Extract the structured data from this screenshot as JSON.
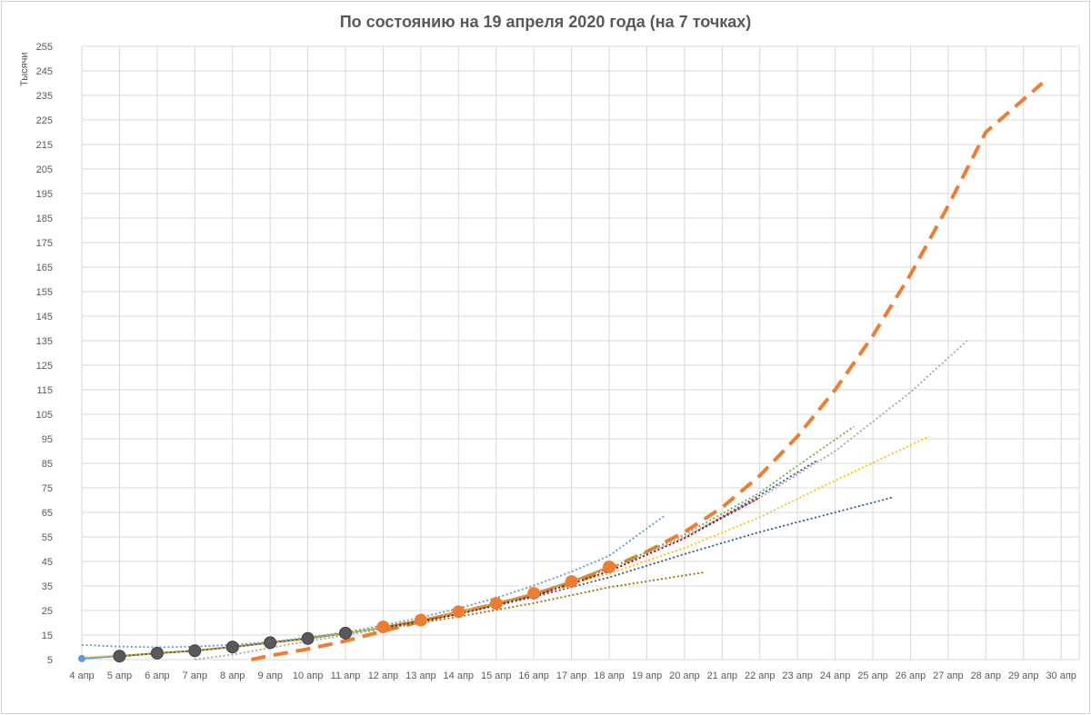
{
  "chart_data": {
    "type": "line",
    "title": "По состоянию на 19 апреля 2020 года (на 7 точках)",
    "ylabel": "Тысячи",
    "xlabel": "",
    "ylim": [
      5,
      255
    ],
    "y_ticks": [
      5,
      15,
      25,
      35,
      45,
      55,
      65,
      75,
      85,
      95,
      105,
      115,
      125,
      135,
      145,
      155,
      165,
      175,
      185,
      195,
      205,
      215,
      225,
      235,
      245,
      255
    ],
    "categories": [
      "4 апр",
      "5 апр",
      "6 апр",
      "7 апр",
      "8 апр",
      "9 апр",
      "10 апр",
      "11 апр",
      "12 апр",
      "13 апр",
      "14 апр",
      "15 апр",
      "16 апр",
      "17 апр",
      "18 апр",
      "19 апр",
      "20 апр",
      "21 апр",
      "22 апр",
      "23 апр",
      "24 апр",
      "25 апр",
      "26 апр",
      "27 апр",
      "28 апр",
      "29 апр",
      "30 апр"
    ],
    "grid": true,
    "legend": "none",
    "colors": {
      "gray_markers": "#595959",
      "orange": "#ED7D31",
      "blue_small": "#5B9BD5",
      "dark_blue": "#2E5597",
      "gray": "#A5A5A5",
      "yellow": "#FFC000",
      "dark_yellow": "#997300",
      "green": "#70AD47",
      "red": "#C00000",
      "grid": "#d9d9d9"
    },
    "series": [
      {
        "style": "marker",
        "color": "#5B9BD5",
        "x": [
          0,
          1
        ],
        "y": [
          5.4,
          6.4
        ]
      },
      {
        "style": "marker",
        "color": "#595959",
        "x": [
          1,
          2,
          3,
          4,
          5,
          6,
          7
        ],
        "y": [
          6.4,
          7.6,
          8.6,
          10.1,
          11.9,
          13.6,
          15.8
        ]
      },
      {
        "style": "marker",
        "color": "#ED7D31",
        "x": [
          8,
          9,
          10,
          11,
          12,
          13,
          14
        ],
        "y": [
          18.3,
          21.1,
          24.5,
          27.9,
          32.0,
          36.8,
          42.8
        ]
      },
      {
        "style": "dashed",
        "color": "#ED7D31",
        "x": [
          4.5,
          5,
          6,
          7,
          8,
          9,
          10,
          11,
          12,
          13,
          14,
          15,
          16,
          17,
          18,
          19,
          20,
          21,
          22,
          23,
          24,
          25.5
        ],
        "y": [
          5.0,
          6.6,
          9.3,
          12.6,
          16.6,
          20.6,
          24.3,
          27.7,
          31.4,
          36.0,
          42.0,
          49.0,
          57.0,
          67.0,
          80.0,
          96.0,
          115.0,
          137.0,
          162.0,
          190.0,
          220.0,
          240.0
        ]
      },
      {
        "style": "dotted",
        "color": "#5B9BD5",
        "x": [
          0,
          1,
          2,
          3,
          4,
          5,
          6,
          7,
          8,
          9,
          10,
          11,
          12,
          13,
          14,
          15.5
        ],
        "y": [
          11.0,
          10.3,
          10.0,
          10.3,
          11.0,
          12.2,
          14.0,
          16.2,
          18.9,
          22.2,
          25.9,
          30.1,
          35.2,
          40.8,
          47.3,
          64.0
        ]
      },
      {
        "style": "dotted",
        "color": "#2E5597",
        "x": [
          0,
          2,
          4,
          6,
          8,
          10,
          12,
          14,
          16,
          18,
          21.5
        ],
        "y": [
          5.8,
          7.4,
          10.1,
          13.4,
          18.0,
          23.5,
          30.5,
          38.5,
          48.0,
          57.0,
          71.0
        ]
      },
      {
        "style": "dotted",
        "color": "#FFC000",
        "x": [
          0,
          2,
          4,
          6,
          8,
          10,
          12,
          14,
          16,
          18,
          20,
          22.5
        ],
        "y": [
          5.8,
          7.4,
          10.0,
          13.4,
          18.2,
          24.2,
          31.3,
          40.0,
          50.5,
          63.0,
          78.0,
          96.0
        ]
      },
      {
        "style": "dotted",
        "color": "#A5A5A5",
        "x": [
          3,
          4,
          6,
          8,
          10,
          12,
          14,
          16,
          18,
          20,
          22,
          23.5
        ],
        "y": [
          5.0,
          7.0,
          12.5,
          17.5,
          23.8,
          32.0,
          42.0,
          55.0,
          71.0,
          90.0,
          114.0,
          135.0
        ]
      },
      {
        "style": "dotted",
        "color": "#70AD47",
        "x": [
          6,
          8,
          10,
          12,
          14,
          16,
          18,
          19,
          20.5
        ],
        "y": [
          13.5,
          18.0,
          23.7,
          31.5,
          42.0,
          56.0,
          73.0,
          84.0,
          100.0
        ]
      },
      {
        "style": "dotted",
        "color": "#2E5597",
        "x": [
          8,
          10,
          12,
          14,
          16,
          18,
          19.5
        ],
        "y": [
          18.0,
          23.5,
          31.0,
          41.0,
          54.5,
          72.0,
          86.0
        ]
      },
      {
        "style": "dotted",
        "color": "#C00000",
        "x": [
          8,
          10,
          12,
          14,
          16,
          18
        ],
        "y": [
          18.0,
          23.5,
          31.0,
          41.0,
          54.5,
          71.0
        ]
      },
      {
        "style": "dotted",
        "color": "#997300",
        "x": [
          8,
          10,
          12,
          14,
          16.5
        ],
        "y": [
          17.5,
          22.5,
          28.0,
          34.5,
          40.5
        ]
      }
    ]
  }
}
